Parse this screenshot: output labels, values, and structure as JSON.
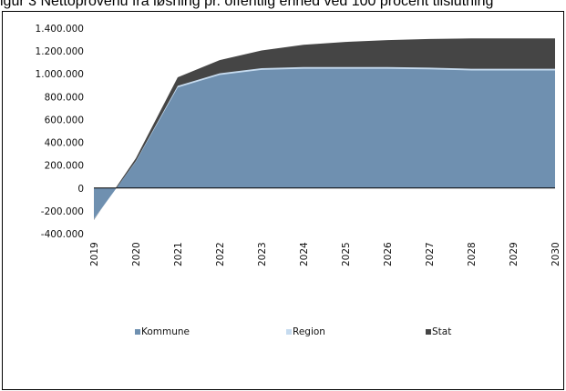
{
  "caption": "igur 3 Nettoprovenu fra løsning pr. offentlig enhed ved 100 procent tilslutning",
  "chart_data": {
    "type": "area",
    "stacked": true,
    "categories": [
      "2019",
      "2020",
      "2021",
      "2022",
      "2023",
      "2024",
      "2025",
      "2026",
      "2027",
      "2028",
      "2029",
      "2030"
    ],
    "yticks": [
      "1.400.000",
      "1.200.000",
      "1.000.000",
      "800.000",
      "600.000",
      "400.000",
      "200.000",
      "0",
      "-200.000",
      "-400.000"
    ],
    "ylim": [
      -400000,
      1400000
    ],
    "series": [
      {
        "name": "Kommune",
        "color": "#6f90b0",
        "values": [
          -270000,
          230000,
          880000,
          990000,
          1035000,
          1045000,
          1045000,
          1045000,
          1040000,
          1030000,
          1030000,
          1030000
        ]
      },
      {
        "name": "Region",
        "color": "#c6dbef",
        "values": [
          -5000,
          5000,
          15000,
          15000,
          15000,
          15000,
          15000,
          15000,
          15000,
          15000,
          15000,
          15000
        ]
      },
      {
        "name": "Stat",
        "color": "#454545",
        "values": [
          -5000,
          25000,
          75000,
          115000,
          155000,
          195000,
          220000,
          235000,
          250000,
          265000,
          265000,
          265000
        ]
      }
    ],
    "legend_position": "bottom",
    "grid": false
  }
}
